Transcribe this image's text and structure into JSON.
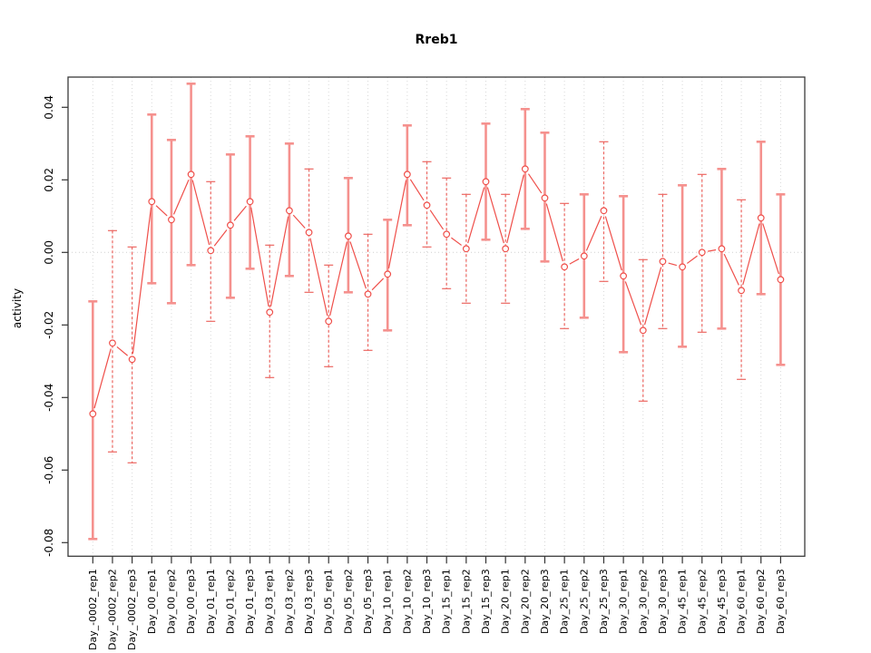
{
  "chart_data": {
    "type": "line",
    "title": "Rreb1",
    "xlabel": "",
    "ylabel": "activity",
    "ylim": [
      -0.085,
      0.05
    ],
    "yticks": [
      0.04,
      0.02,
      0.0,
      -0.02,
      -0.04,
      -0.06,
      -0.08
    ],
    "ytick_labels": [
      "0.04",
      "0.02",
      "0.00",
      "-0.02",
      "-0.04",
      "-0.06",
      "-0.08"
    ],
    "grid": "vertical-dotted-per-category",
    "zero_line": true,
    "legend": "none",
    "marker": "open-circle",
    "line_type": "points-with-gapped-line",
    "categories": [
      "Day_-0002_rep1",
      "Day_-0002_rep2",
      "Day_-0002_rep3",
      "Day_00_rep1",
      "Day_00_rep2",
      "Day_00_rep3",
      "Day_01_rep1",
      "Day_01_rep2",
      "Day_01_rep3",
      "Day_03_rep1",
      "Day_03_rep2",
      "Day_03_rep3",
      "Day_05_rep1",
      "Day_05_rep2",
      "Day_05_rep3",
      "Day_10_rep1",
      "Day_10_rep2",
      "Day_10_rep3",
      "Day_15_rep1",
      "Day_15_rep2",
      "Day_15_rep3",
      "Day_20_rep1",
      "Day_20_rep2",
      "Day_20_rep3",
      "Day_25_rep1",
      "Day_25_rep2",
      "Day_25_rep3",
      "Day_30_rep1",
      "Day_30_rep2",
      "Day_30_rep3",
      "Day_45_rep1",
      "Day_45_rep2",
      "Day_45_rep3",
      "Day_60_rep1",
      "Day_60_rep2",
      "Day_60_rep3"
    ],
    "series": [
      {
        "name": "activity",
        "values": [
          -0.0445,
          -0.025,
          -0.0295,
          0.014,
          0.009,
          0.0215,
          0.0005,
          0.0075,
          0.014,
          -0.0165,
          0.0115,
          0.0055,
          -0.019,
          0.0045,
          -0.0115,
          -0.006,
          0.0215,
          0.013,
          0.005,
          0.001,
          0.0195,
          0.001,
          0.023,
          0.015,
          -0.004,
          -0.001,
          0.0115,
          -0.0065,
          -0.0215,
          -0.0025,
          -0.004,
          0.0,
          0.001,
          -0.0105,
          0.0095,
          -0.0075
        ],
        "upper": [
          -0.0135,
          0.006,
          0.0015,
          0.038,
          0.031,
          0.0465,
          0.0195,
          0.027,
          0.032,
          0.002,
          0.03,
          0.023,
          -0.0035,
          0.0205,
          0.005,
          0.009,
          0.035,
          0.025,
          0.0205,
          0.016,
          0.0355,
          0.016,
          0.0395,
          0.033,
          0.0135,
          0.016,
          0.0305,
          0.0155,
          -0.002,
          0.016,
          0.0185,
          0.0215,
          0.023,
          0.0145,
          0.0305,
          0.016
        ],
        "lower": [
          -0.079,
          -0.055,
          -0.058,
          -0.0085,
          -0.014,
          -0.0035,
          -0.019,
          -0.0125,
          -0.0045,
          -0.0345,
          -0.0065,
          -0.011,
          -0.0315,
          -0.011,
          -0.027,
          -0.0215,
          0.0075,
          0.0015,
          -0.01,
          -0.014,
          0.0035,
          -0.014,
          0.0065,
          -0.0025,
          -0.021,
          -0.018,
          -0.008,
          -0.0275,
          -0.041,
          -0.021,
          -0.026,
          -0.022,
          -0.021,
          -0.035,
          -0.0115,
          -0.031
        ],
        "bar_styles": [
          "solid",
          "dashed",
          "dashed",
          "solid",
          "solid",
          "solid",
          "dashed",
          "solid",
          "solid",
          "dashed",
          "solid",
          "dashed",
          "dashed",
          "solid",
          "dashed",
          "solid",
          "solid",
          "dashed",
          "dashed",
          "dashed",
          "solid",
          "dashed",
          "solid",
          "solid",
          "dashed",
          "solid",
          "dashed",
          "solid",
          "dashed",
          "dashed",
          "solid",
          "dashed",
          "solid",
          "dashed",
          "solid",
          "solid"
        ]
      }
    ],
    "colors": {
      "point": "#ef4f4a",
      "line": "#ef4f4a",
      "errorbar_solid": "#f5918e",
      "errorbar_dashed": "#ec6661",
      "grid": "#d8d8d8",
      "zero_line": "#d0d0d0",
      "box": "#3a3a3a",
      "tick": "#333333",
      "text": "#000000"
    }
  }
}
